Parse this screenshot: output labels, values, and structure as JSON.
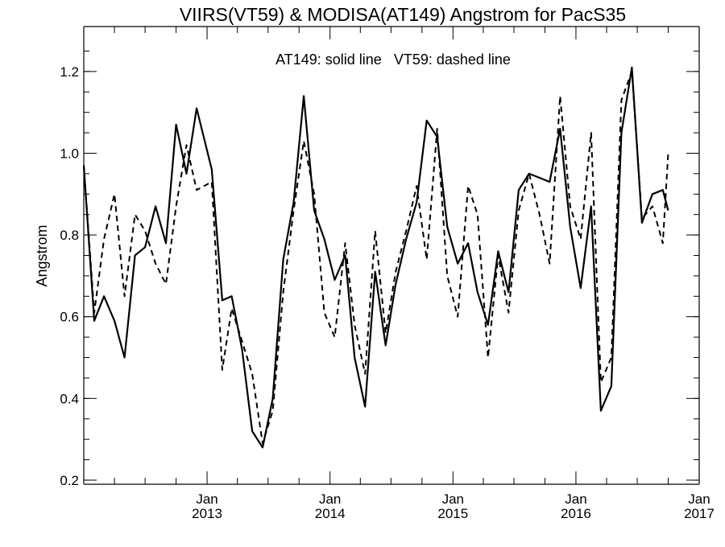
{
  "chart_data": {
    "type": "line",
    "title": "VIIRS(VT59) & MODISA(AT149)  Angstrom for PacS35",
    "annotation": "AT149: solid line   VT59: dashed line",
    "ylabel": "Angstrom",
    "xlabel": "",
    "xlim": [
      "2012-01-01",
      "2017-01-01"
    ],
    "ylim": [
      0.19,
      1.31
    ],
    "yticks": [
      0.2,
      0.4,
      0.6,
      0.8,
      1.0,
      1.2
    ],
    "ytick_labels": [
      "0.2",
      "0.4",
      "0.6",
      "0.8",
      "1.0",
      "1.2"
    ],
    "xticks": [
      {
        "date": "2013-01-01",
        "month": "Jan",
        "year": "2013"
      },
      {
        "date": "2014-01-01",
        "month": "Jan",
        "year": "2014"
      },
      {
        "date": "2015-01-01",
        "month": "Jan",
        "year": "2015"
      },
      {
        "date": "2016-01-01",
        "month": "Jan",
        "year": "2016"
      },
      {
        "date": "2017-01-01",
        "month": "Jan",
        "year": "2017"
      }
    ],
    "series": [
      {
        "style": "solid",
        "points": [
          [
            "2012-01-01",
            0.97
          ],
          [
            "2012-02-01",
            0.59
          ],
          [
            "2012-03-01",
            0.65
          ],
          [
            "2012-04-01",
            0.59
          ],
          [
            "2012-05-01",
            0.5
          ],
          [
            "2012-06-01",
            0.75
          ],
          [
            "2012-07-01",
            0.77
          ],
          [
            "2012-08-01",
            0.87
          ],
          [
            "2012-09-01",
            0.78
          ],
          [
            "2012-10-01",
            1.07
          ],
          [
            "2012-11-01",
            0.95
          ],
          [
            "2012-12-01",
            1.11
          ],
          [
            "2013-01-15",
            0.96
          ],
          [
            "2013-02-15",
            0.64
          ],
          [
            "2013-03-15",
            0.65
          ],
          [
            "2013-04-15",
            0.52
          ],
          [
            "2013-05-15",
            0.32
          ],
          [
            "2013-06-15",
            0.28
          ],
          [
            "2013-07-15",
            0.4
          ],
          [
            "2013-08-15",
            0.74
          ],
          [
            "2013-09-15",
            0.88
          ],
          [
            "2013-10-15",
            1.14
          ],
          [
            "2013-11-15",
            0.86
          ],
          [
            "2013-12-15",
            0.79
          ],
          [
            "2014-01-15",
            0.69
          ],
          [
            "2014-02-15",
            0.75
          ],
          [
            "2014-03-15",
            0.5
          ],
          [
            "2014-04-15",
            0.38
          ],
          [
            "2014-05-15",
            0.71
          ],
          [
            "2014-06-15",
            0.53
          ],
          [
            "2014-07-15",
            0.68
          ],
          [
            "2014-08-15",
            0.79
          ],
          [
            "2014-09-15",
            0.88
          ],
          [
            "2014-10-15",
            1.08
          ],
          [
            "2014-11-15",
            1.04
          ],
          [
            "2014-12-15",
            0.82
          ],
          [
            "2015-01-15",
            0.73
          ],
          [
            "2015-02-15",
            0.78
          ],
          [
            "2015-03-15",
            0.66
          ],
          [
            "2015-04-15",
            0.58
          ],
          [
            "2015-05-15",
            0.76
          ],
          [
            "2015-06-15",
            0.66
          ],
          [
            "2015-07-15",
            0.91
          ],
          [
            "2015-08-15",
            0.95
          ],
          [
            "2015-09-15",
            0.94
          ],
          [
            "2015-10-15",
            0.93
          ],
          [
            "2015-11-15",
            1.06
          ],
          [
            "2015-12-15",
            0.82
          ],
          [
            "2016-01-15",
            0.67
          ],
          [
            "2016-02-15",
            0.87
          ],
          [
            "2016-03-15",
            0.37
          ],
          [
            "2016-04-15",
            0.43
          ],
          [
            "2016-05-15",
            1.05
          ],
          [
            "2016-06-15",
            1.21
          ],
          [
            "2016-07-15",
            0.83
          ],
          [
            "2016-08-15",
            0.9
          ],
          [
            "2016-09-15",
            0.91
          ],
          [
            "2016-10-01",
            0.86
          ]
        ]
      },
      {
        "style": "dashed",
        "points": [
          [
            "2012-01-01",
            0.97
          ],
          [
            "2012-02-01",
            0.61
          ],
          [
            "2012-03-01",
            0.79
          ],
          [
            "2012-04-01",
            0.9
          ],
          [
            "2012-05-01",
            0.65
          ],
          [
            "2012-06-01",
            0.85
          ],
          [
            "2012-07-01",
            0.81
          ],
          [
            "2012-08-01",
            0.73
          ],
          [
            "2012-09-01",
            0.68
          ],
          [
            "2012-10-01",
            0.87
          ],
          [
            "2012-11-01",
            1.02
          ],
          [
            "2012-12-01",
            0.91
          ],
          [
            "2013-01-15",
            0.93
          ],
          [
            "2013-02-15",
            0.47
          ],
          [
            "2013-03-15",
            0.62
          ],
          [
            "2013-04-15",
            0.54
          ],
          [
            "2013-05-15",
            0.46
          ],
          [
            "2013-06-15",
            0.29
          ],
          [
            "2013-07-15",
            0.37
          ],
          [
            "2013-08-15",
            0.66
          ],
          [
            "2013-09-15",
            0.86
          ],
          [
            "2013-10-15",
            1.03
          ],
          [
            "2013-11-15",
            0.9
          ],
          [
            "2013-12-15",
            0.61
          ],
          [
            "2014-01-15",
            0.55
          ],
          [
            "2014-02-15",
            0.78
          ],
          [
            "2014-03-15",
            0.58
          ],
          [
            "2014-04-15",
            0.46
          ],
          [
            "2014-05-15",
            0.81
          ],
          [
            "2014-06-15",
            0.56
          ],
          [
            "2014-07-15",
            0.71
          ],
          [
            "2014-08-15",
            0.81
          ],
          [
            "2014-09-15",
            0.92
          ],
          [
            "2014-10-15",
            0.74
          ],
          [
            "2014-11-15",
            1.06
          ],
          [
            "2014-12-15",
            0.7
          ],
          [
            "2015-01-15",
            0.6
          ],
          [
            "2015-02-15",
            0.92
          ],
          [
            "2015-03-15",
            0.85
          ],
          [
            "2015-04-15",
            0.5
          ],
          [
            "2015-05-15",
            0.75
          ],
          [
            "2015-06-15",
            0.61
          ],
          [
            "2015-07-15",
            0.86
          ],
          [
            "2015-08-15",
            0.95
          ],
          [
            "2015-09-15",
            0.85
          ],
          [
            "2015-10-15",
            0.73
          ],
          [
            "2015-11-15",
            1.14
          ],
          [
            "2015-12-15",
            0.87
          ],
          [
            "2016-01-15",
            0.79
          ],
          [
            "2016-02-15",
            1.05
          ],
          [
            "2016-03-15",
            0.44
          ],
          [
            "2016-04-15",
            0.5
          ],
          [
            "2016-05-15",
            1.13
          ],
          [
            "2016-06-15",
            1.2
          ],
          [
            "2016-07-15",
            0.84
          ],
          [
            "2016-08-15",
            0.87
          ],
          [
            "2016-09-15",
            0.78
          ],
          [
            "2016-10-01",
            1.0
          ]
        ]
      }
    ],
    "grid": false,
    "legend": "none"
  }
}
